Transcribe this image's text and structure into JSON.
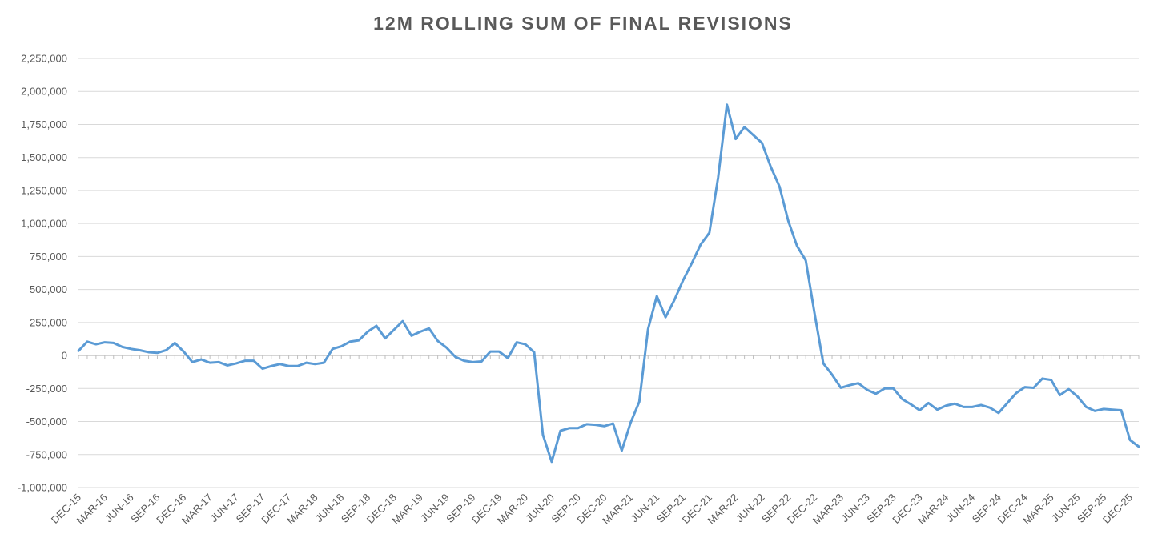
{
  "chart_data": {
    "type": "line",
    "title": "12M ROLLING SUM OF FINAL REVISIONS",
    "xlabel": "",
    "ylabel": "",
    "ylim": [
      -1000000,
      2250000
    ],
    "y_ticks": [
      {
        "value": 2250000,
        "label": "2,250,000"
      },
      {
        "value": 2000000,
        "label": "2,000,000"
      },
      {
        "value": 1750000,
        "label": "1,750,000"
      },
      {
        "value": 1500000,
        "label": "1,500,000"
      },
      {
        "value": 1250000,
        "label": "1,250,000"
      },
      {
        "value": 1000000,
        "label": "1,000,000"
      },
      {
        "value": 750000,
        "label": "750,000"
      },
      {
        "value": 500000,
        "label": "500,000"
      },
      {
        "value": 250000,
        "label": "250,000"
      },
      {
        "value": 0,
        "label": "0"
      },
      {
        "value": -250000,
        "label": "-250,000"
      },
      {
        "value": -500000,
        "label": "-500,000"
      },
      {
        "value": -750000,
        "label": "-750,000"
      },
      {
        "value": -1000000,
        "label": "-1,000,000"
      }
    ],
    "x_tick_labels": [
      "DEC-15",
      "MAR-16",
      "JUN-16",
      "SEP-16",
      "DEC-16",
      "MAR-17",
      "JUN-17",
      "SEP-17",
      "DEC-17",
      "MAR-18",
      "JUN-18",
      "SEP-18",
      "DEC-18",
      "MAR-19",
      "JUN-19",
      "SEP-19",
      "DEC-19",
      "MAR-20",
      "JUN-20",
      "SEP-20",
      "DEC-20",
      "MAR-21",
      "JUN-21",
      "SEP-21",
      "DEC-21",
      "MAR-22",
      "JUN-22",
      "SEP-22",
      "DEC-22",
      "MAR-23",
      "JUN-23",
      "SEP-23",
      "DEC-23",
      "MAR-24",
      "JUN-24",
      "SEP-24",
      "DEC-24",
      "MAR-25",
      "JUN-25",
      "SEP-25",
      "DEC-25"
    ],
    "grid": true,
    "legend": "none",
    "line_color": "#5B9BD5",
    "series": [
      {
        "values": [
          35000,
          105000,
          85000,
          100000,
          95000,
          65000,
          50000,
          40000,
          25000,
          20000,
          40000,
          95000,
          30000,
          -50000,
          -30000,
          -55000,
          -50000,
          -75000,
          -60000,
          -40000,
          -40000,
          -100000,
          -80000,
          -65000,
          -80000,
          -80000,
          -55000,
          -65000,
          -55000,
          50000,
          70000,
          105000,
          115000,
          180000,
          225000,
          130000,
          195000,
          260000,
          150000,
          180000,
          205000,
          110000,
          60000,
          -10000,
          -40000,
          -50000,
          -45000,
          30000,
          30000,
          -20000,
          100000,
          85000,
          25000,
          -600000,
          -805000,
          -570000,
          -550000,
          -550000,
          -520000,
          -525000,
          -535000,
          -515000,
          -720000,
          -510000,
          -350000,
          200000,
          450000,
          290000,
          420000,
          570000,
          700000,
          840000,
          930000,
          1350000,
          1900000,
          1640000,
          1730000,
          1670000,
          1610000,
          1430000,
          1280000,
          1020000,
          830000,
          720000,
          320000,
          -60000,
          -145000,
          -245000,
          -225000,
          -210000,
          -260000,
          -290000,
          -250000,
          -250000,
          -330000,
          -370000,
          -415000,
          -360000,
          -410000,
          -380000,
          -365000,
          -390000,
          -390000,
          -375000,
          -395000,
          -435000,
          -360000,
          -285000,
          -240000,
          -245000,
          -175000,
          -185000,
          -300000,
          -255000,
          -310000,
          -390000,
          -420000,
          -405000,
          -410000,
          -415000,
          -640000,
          -690000
        ]
      }
    ]
  }
}
